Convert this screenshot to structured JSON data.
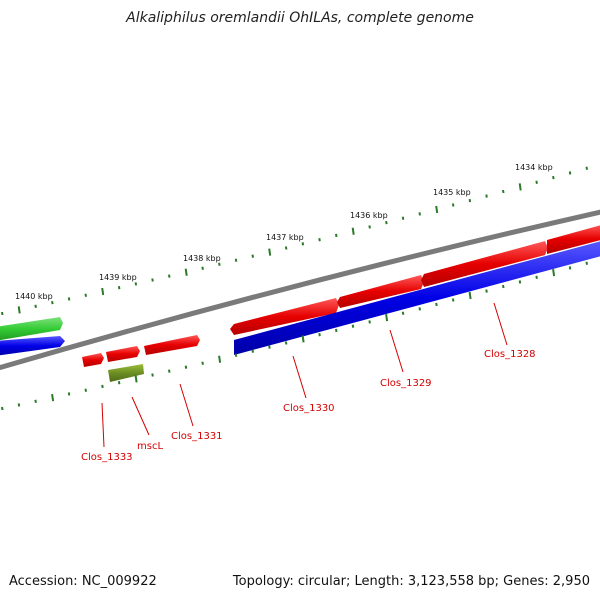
{
  "title": "Alkaliphilus oremlandii OhILAs, complete genome",
  "footer": {
    "accession": "Accession: NC_009922",
    "summary": "Topology: circular; Length: 3,123,558 bp; Genes: 2,950"
  },
  "scale_labels": [
    "1434 kbp",
    "1435 kbp",
    "1436 kbp",
    "1437 kbp",
    "1438 kbp",
    "1439 kbp",
    "1440 kbp"
  ],
  "gene_labels": [
    "Clos_1328",
    "Clos_1329",
    "Clos_1330",
    "Clos_1331",
    "mscL",
    "Clos_1333"
  ],
  "colors": {
    "backbone": "#808080",
    "gene_red": "#e60000",
    "gene_blue": "#0000e6",
    "gene_green": "#33cc33",
    "gene_olive": "#6b8e23",
    "tick": "#2a7a2a",
    "label_red": "#d40000"
  }
}
